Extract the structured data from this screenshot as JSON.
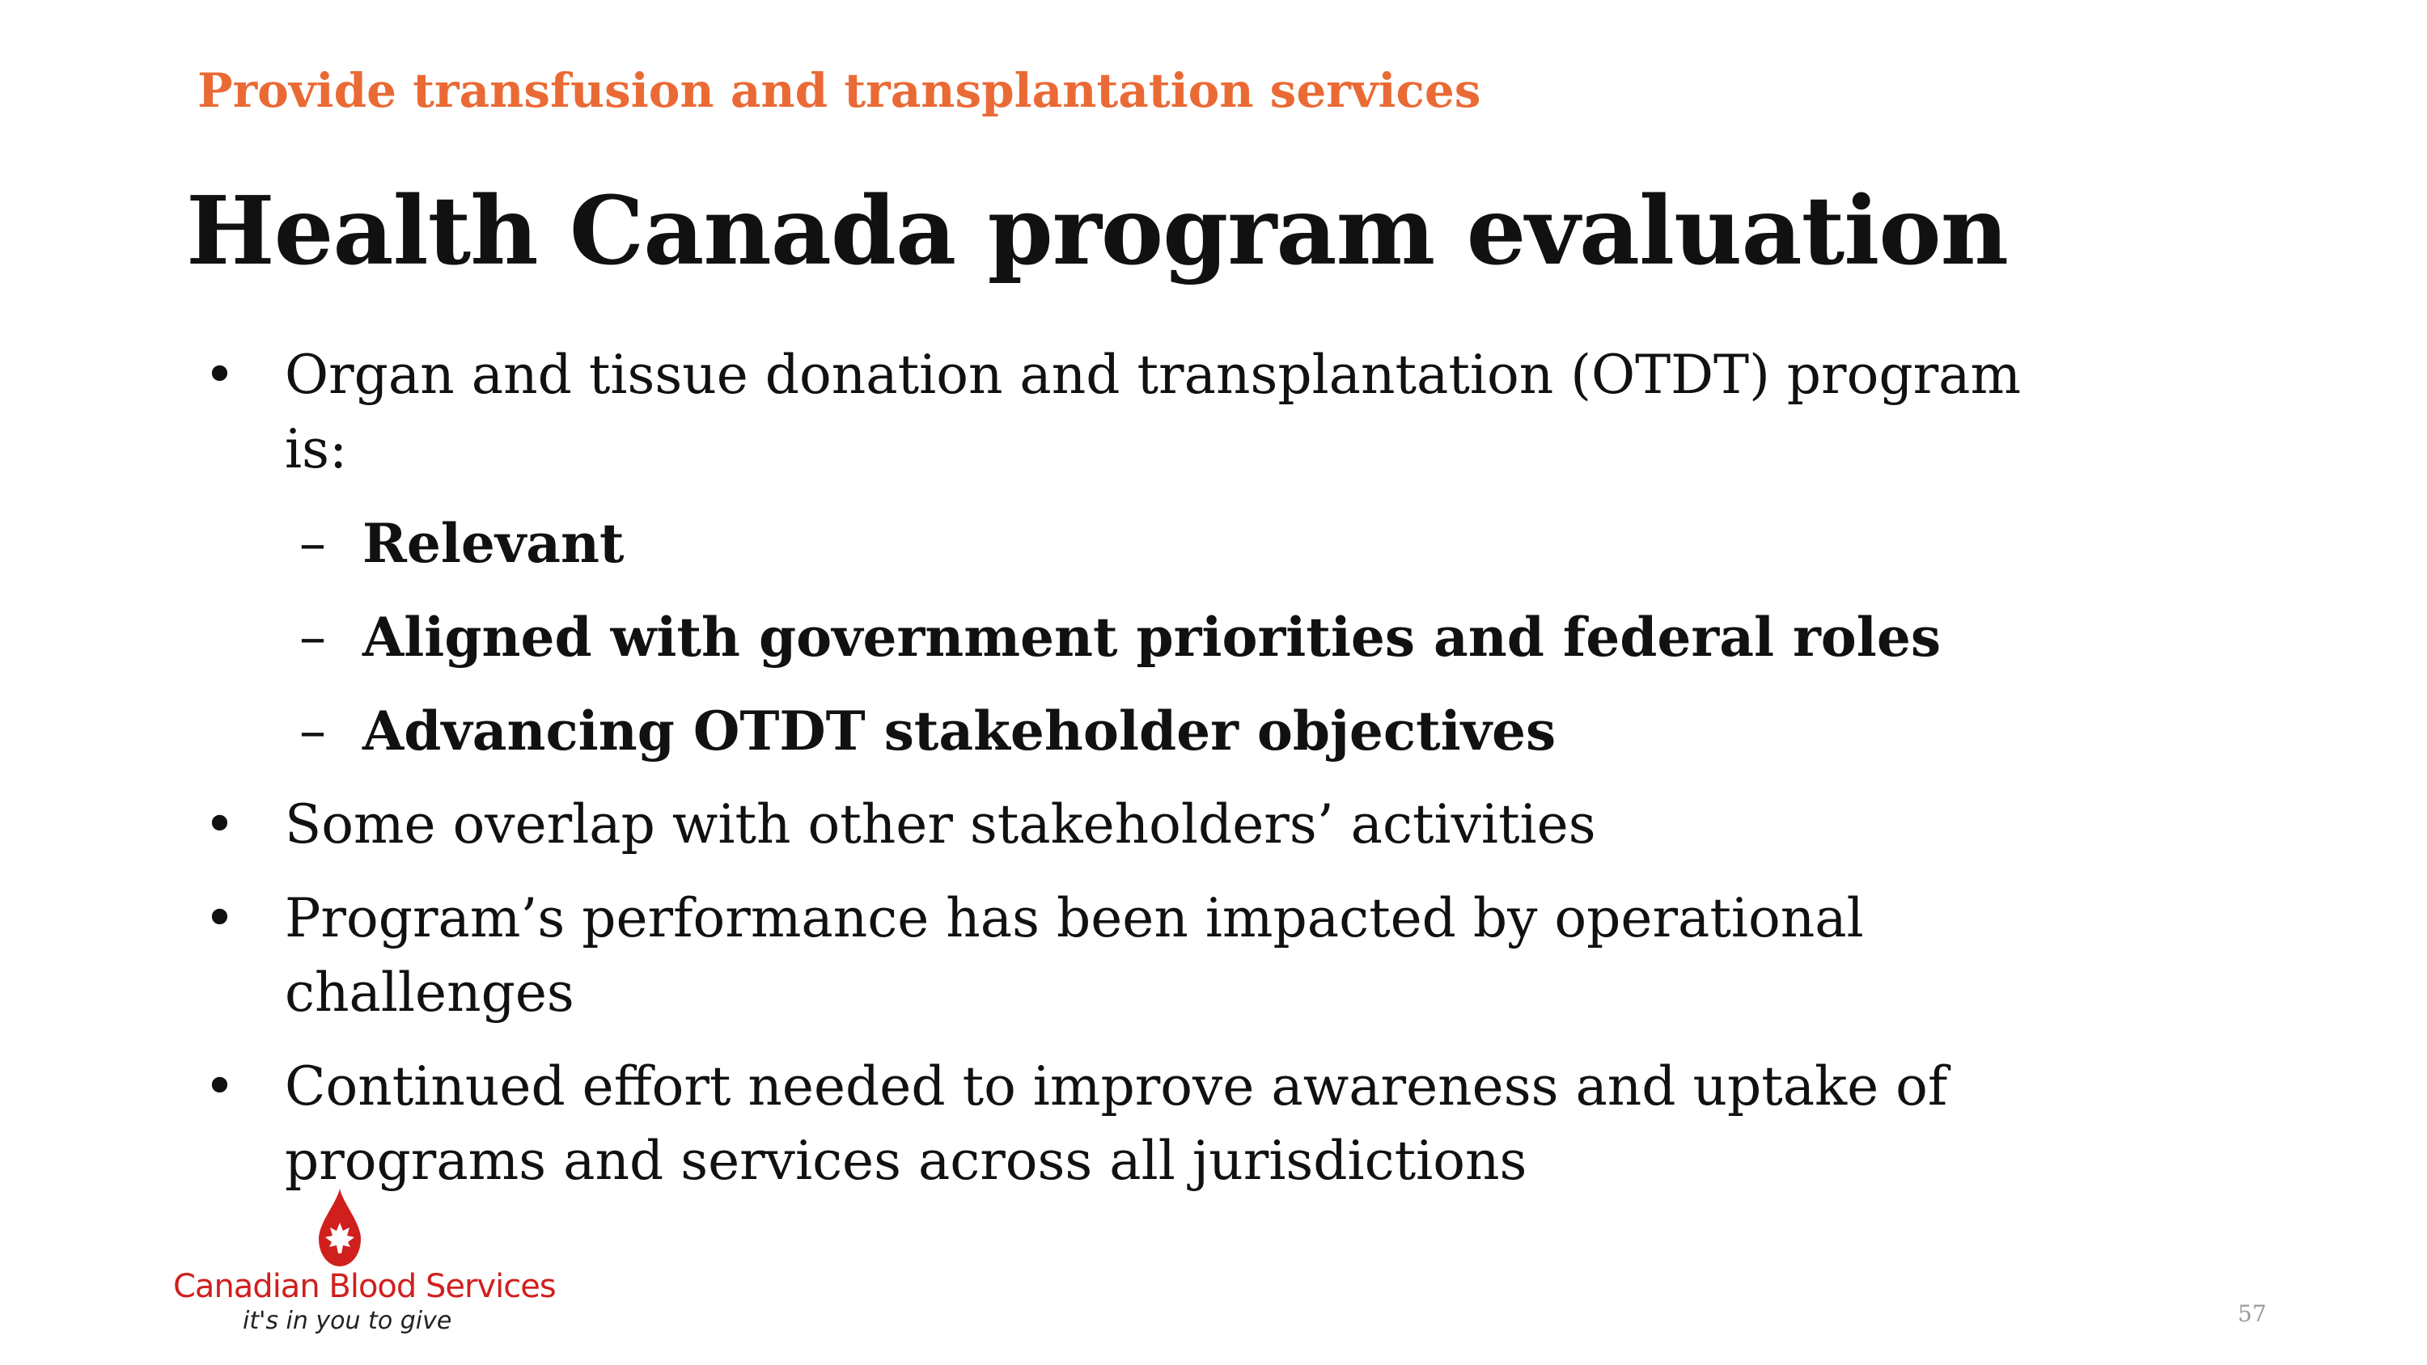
{
  "header": {
    "section_label": "Provide transfusion and transplantation services",
    "title": "Health Canada program evaluation"
  },
  "bullets": [
    {
      "text": "Organ and tissue donation and transplantation (OTDT) program is:",
      "subitems": [
        "Relevant",
        "Aligned with government priorities and federal roles",
        "Advancing OTDT stakeholder objectives"
      ]
    },
    {
      "text": "Some overlap with other stakeholders’ activities"
    },
    {
      "text": "Program’s performance has been impacted by operational challenges"
    },
    {
      "text": "Continued effort needed to improve awareness and uptake of programs and services across all jurisdictions"
    }
  ],
  "markers": {
    "bullet": "•",
    "dash": "–"
  },
  "logo": {
    "name": "Canadian Blood Services",
    "tagline": "it's in you to give",
    "icon": "blood-drop-maple-leaf-icon",
    "brand_color": "#d0201e"
  },
  "footer": {
    "page_number": "57"
  },
  "colors": {
    "accent": "#ea6a35",
    "text": "#111111",
    "page_number": "#9a9a9a"
  }
}
